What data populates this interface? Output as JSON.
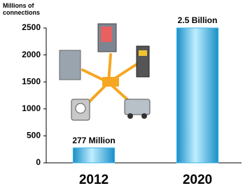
{
  "chart_data": {
    "type": "bar",
    "y_label": "Millions of connections",
    "categories": [
      "2012",
      "2020"
    ],
    "values": [
      277,
      2500
    ],
    "value_labels": [
      "277 Million",
      "2.5 Billion"
    ],
    "color": "#3ab4e6",
    "ylim": [
      0,
      2500
    ],
    "yticks": [
      0,
      500,
      1000,
      1500,
      2000,
      2500
    ],
    "grid": false
  }
}
